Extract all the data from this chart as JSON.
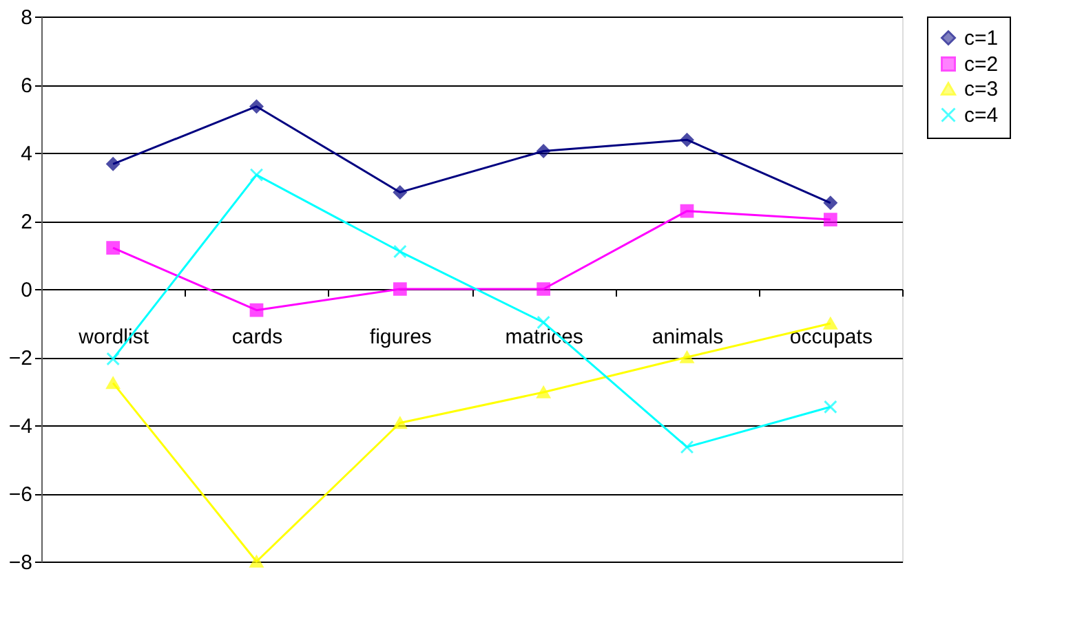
{
  "chart_data": {
    "type": "line",
    "categories": [
      "wordlist",
      "cards",
      "figures",
      "matrices",
      "animals",
      "occupats"
    ],
    "series": [
      {
        "name": "c=1",
        "color": "#000080",
        "marker": "diamond",
        "values": [
          3.67,
          5.36,
          2.84,
          4.05,
          4.38,
          2.53
        ]
      },
      {
        "name": "c=2",
        "color": "#ff00ff",
        "marker": "square",
        "values": [
          1.21,
          -0.62,
          0,
          0,
          2.29,
          2.04
        ]
      },
      {
        "name": "c=3",
        "color": "#ffff00",
        "marker": "triangle",
        "values": [
          -2.76,
          -8,
          -3.93,
          -3.03,
          -2.0,
          -1.01
        ]
      },
      {
        "name": "c=4",
        "color": "#00ffff",
        "marker": "cross",
        "values": [
          -2.05,
          3.35,
          1.1,
          -0.98,
          -4.64,
          -3.46
        ]
      }
    ],
    "ylim": [
      -8,
      8
    ],
    "yticks": [
      -8,
      -6,
      -4,
      -2,
      0,
      2,
      4,
      6,
      8
    ],
    "grid": "y",
    "legend": "right",
    "line_style": "solid"
  }
}
